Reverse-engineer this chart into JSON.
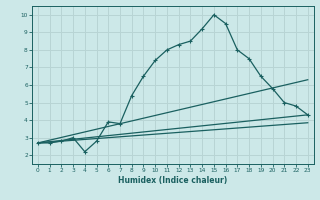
{
  "xlabel": "Humidex (Indice chaleur)",
  "ylabel": "",
  "xlim": [
    -0.5,
    23.5
  ],
  "ylim": [
    1.5,
    10.5
  ],
  "yticks": [
    2,
    3,
    4,
    5,
    6,
    7,
    8,
    9,
    10
  ],
  "xticks": [
    0,
    1,
    2,
    3,
    4,
    5,
    6,
    7,
    8,
    9,
    10,
    11,
    12,
    13,
    14,
    15,
    16,
    17,
    18,
    19,
    20,
    21,
    22,
    23
  ],
  "bg_color": "#cce8e8",
  "grid_color": "#b8d4d4",
  "line_color": "#1a6060",
  "lines": [
    {
      "x": [
        0,
        1,
        2,
        3,
        4,
        5,
        6,
        7,
        8,
        9,
        10,
        11,
        12,
        13,
        14,
        15,
        16,
        17,
        18,
        19,
        20,
        21,
        22,
        23
      ],
      "y": [
        2.7,
        2.7,
        2.8,
        3.0,
        2.2,
        2.8,
        3.9,
        3.8,
        5.4,
        6.5,
        7.4,
        8.0,
        8.3,
        8.5,
        9.2,
        10.0,
        9.5,
        8.0,
        7.5,
        6.5,
        5.8,
        5.0,
        4.8,
        4.3
      ],
      "marker": "+"
    },
    {
      "x": [
        0,
        23
      ],
      "y": [
        2.7,
        4.3
      ],
      "marker": null
    },
    {
      "x": [
        0,
        23
      ],
      "y": [
        2.7,
        6.3
      ],
      "marker": null
    },
    {
      "x": [
        0,
        23
      ],
      "y": [
        2.7,
        3.85
      ],
      "marker": null
    }
  ]
}
